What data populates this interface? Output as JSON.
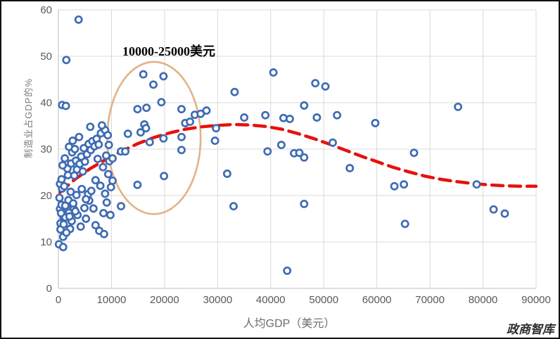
{
  "watermark": "政商智库",
  "chart_data": {
    "type": "scatter",
    "title": "",
    "xlabel": "人均GDP（美元）",
    "ylabel": "制造业占GDP的%",
    "xlim": [
      0,
      90000
    ],
    "ylim": [
      0,
      60
    ],
    "x_ticks": [
      0,
      10000,
      20000,
      30000,
      40000,
      50000,
      60000,
      70000,
      80000,
      90000
    ],
    "y_ticks": [
      0,
      10,
      20,
      30,
      40,
      50,
      60
    ],
    "grid": true,
    "legend": "none",
    "annotation": {
      "label": "10000-25000美元",
      "ellipse": {
        "cx": 18000,
        "cy": 32.4,
        "rx": 8800,
        "ry": 16.4
      }
    },
    "colors": {
      "marker_stroke": "#3f6bb4",
      "marker_fill": "#ffffff",
      "trend": "#e8100c",
      "ellipse": "#e3b286",
      "grid": "#d9d9d9",
      "axis": "#bfbfbf",
      "tick_text": "#595959"
    },
    "points": [
      [
        100,
        9.5
      ],
      [
        900,
        8.9
      ],
      [
        900,
        11.1
      ],
      [
        300,
        17.1
      ],
      [
        400,
        14.0
      ],
      [
        700,
        39.5
      ],
      [
        1400,
        39.3
      ],
      [
        1500,
        49.2
      ],
      [
        1600,
        17.2
      ],
      [
        1000,
        15.2
      ],
      [
        1300,
        15.3
      ],
      [
        500,
        16.2
      ],
      [
        2000,
        16.3
      ],
      [
        700,
        21.5
      ],
      [
        300,
        22.5
      ],
      [
        1100,
        22.0
      ],
      [
        600,
        23.5
      ],
      [
        1800,
        24.4
      ],
      [
        400,
        12.7
      ],
      [
        2200,
        12.8
      ],
      [
        2900,
        17.1
      ],
      [
        2500,
        14.5
      ],
      [
        1700,
        25.8
      ],
      [
        800,
        26.5
      ],
      [
        1200,
        28.0
      ],
      [
        2600,
        29.3
      ],
      [
        2000,
        30.5
      ],
      [
        3100,
        30.0
      ],
      [
        2400,
        26.9
      ],
      [
        3300,
        27.5
      ],
      [
        4200,
        13.3
      ],
      [
        4900,
        17.3
      ],
      [
        3600,
        15.8
      ],
      [
        7000,
        13.6
      ],
      [
        6600,
        17.2
      ],
      [
        7700,
        12.4
      ],
      [
        8600,
        11.7
      ],
      [
        5800,
        18.9
      ],
      [
        5200,
        15.0
      ],
      [
        8500,
        16.2
      ],
      [
        9800,
        15.8
      ],
      [
        9100,
        18.5
      ],
      [
        3800,
        57.9
      ],
      [
        3400,
        20.1
      ],
      [
        4400,
        21.4
      ],
      [
        5600,
        20.3
      ],
      [
        3000,
        24.3
      ],
      [
        3500,
        25.6
      ],
      [
        4000,
        26.8
      ],
      [
        4600,
        25.2
      ],
      [
        5000,
        27.3
      ],
      [
        4300,
        28.4
      ],
      [
        5400,
        28.9
      ],
      [
        4800,
        30.2
      ],
      [
        5700,
        31.1
      ],
      [
        6100,
        29.8
      ],
      [
        6400,
        31.7
      ],
      [
        6800,
        30.6
      ],
      [
        7200,
        32.2
      ],
      [
        7600,
        31.0
      ],
      [
        8000,
        33.4
      ],
      [
        8800,
        34.1
      ],
      [
        9300,
        33.0
      ],
      [
        6000,
        34.8
      ],
      [
        8200,
        35.1
      ],
      [
        9000,
        28.6
      ],
      [
        9600,
        27.4
      ],
      [
        8400,
        26.1
      ],
      [
        7400,
        27.9
      ],
      [
        9400,
        24.6
      ],
      [
        7000,
        23.3
      ],
      [
        7900,
        22.1
      ],
      [
        6200,
        21.0
      ],
      [
        5200,
        19.2
      ],
      [
        9900,
        21.8
      ],
      [
        8800,
        20.4
      ],
      [
        9500,
        30.9
      ],
      [
        2700,
        31.8
      ],
      [
        3900,
        32.6
      ],
      [
        1900,
        19.0
      ],
      [
        2300,
        20.8
      ],
      [
        2800,
        18.3
      ],
      [
        1000,
        13.8
      ],
      [
        1500,
        12.0
      ],
      [
        600,
        18.0
      ],
      [
        200,
        19.5
      ],
      [
        1300,
        17.8
      ],
      [
        3200,
        16.6
      ],
      [
        2100,
        15.5
      ],
      [
        10200,
        28.0
      ],
      [
        10200,
        23.2
      ],
      [
        11800,
        29.5
      ],
      [
        12600,
        29.5
      ],
      [
        11800,
        17.7
      ],
      [
        13100,
        33.3
      ],
      [
        15500,
        33.6
      ],
      [
        14900,
        38.6
      ],
      [
        16600,
        38.9
      ],
      [
        16000,
        46.1
      ],
      [
        19800,
        45.7
      ],
      [
        17900,
        43.9
      ],
      [
        19400,
        40.1
      ],
      [
        16200,
        35.3
      ],
      [
        16500,
        34.5
      ],
      [
        17200,
        31.5
      ],
      [
        19800,
        32.3
      ],
      [
        19900,
        24.2
      ],
      [
        14900,
        22.3
      ],
      [
        23200,
        38.6
      ],
      [
        23900,
        35.6
      ],
      [
        24800,
        35.9
      ],
      [
        23200,
        32.6
      ],
      [
        23200,
        29.8
      ],
      [
        25700,
        37.4
      ],
      [
        26800,
        37.6
      ],
      [
        27900,
        38.3
      ],
      [
        29700,
        34.5
      ],
      [
        29500,
        31.8
      ],
      [
        31800,
        24.7
      ],
      [
        33000,
        17.7
      ],
      [
        33200,
        42.3
      ],
      [
        35000,
        36.8
      ],
      [
        39000,
        37.3
      ],
      [
        39400,
        29.5
      ],
      [
        40500,
        46.5
      ],
      [
        42000,
        30.9
      ],
      [
        42400,
        36.7
      ],
      [
        43600,
        36.5
      ],
      [
        43100,
        3.8
      ],
      [
        44400,
        29.1
      ],
      [
        45400,
        29.2
      ],
      [
        46300,
        28.2
      ],
      [
        46300,
        39.4
      ],
      [
        46300,
        18.2
      ],
      [
        48400,
        44.2
      ],
      [
        48700,
        36.8
      ],
      [
        50300,
        43.5
      ],
      [
        51700,
        31.4
      ],
      [
        52500,
        37.3
      ],
      [
        54900,
        25.9
      ],
      [
        59700,
        35.6
      ],
      [
        63300,
        22.0
      ],
      [
        65100,
        22.4
      ],
      [
        65300,
        13.9
      ],
      [
        67000,
        29.2
      ],
      [
        75300,
        39.1
      ],
      [
        78800,
        22.4
      ],
      [
        82000,
        17.0
      ],
      [
        84100,
        16.1
      ]
    ],
    "trend": {
      "style": "dashed",
      "points": [
        [
          300,
          20.7
        ],
        [
          3000,
          23.4
        ],
        [
          6000,
          25.8
        ],
        [
          9000,
          27.8
        ],
        [
          12000,
          29.6
        ],
        [
          15000,
          31.2
        ],
        [
          18000,
          32.5
        ],
        [
          21000,
          33.5
        ],
        [
          24000,
          34.3
        ],
        [
          27000,
          34.8
        ],
        [
          30000,
          35.1
        ],
        [
          33000,
          35.3
        ],
        [
          36000,
          35.2
        ],
        [
          39000,
          34.9
        ],
        [
          42000,
          34.3
        ],
        [
          45000,
          33.4
        ],
        [
          48000,
          32.3
        ],
        [
          51000,
          31.1
        ],
        [
          54000,
          29.8
        ],
        [
          57000,
          28.5
        ],
        [
          60000,
          27.3
        ],
        [
          63000,
          26.1
        ],
        [
          66000,
          25.1
        ],
        [
          69000,
          24.2
        ],
        [
          72000,
          23.5
        ],
        [
          75000,
          23.0
        ],
        [
          78000,
          22.6
        ],
        [
          81000,
          22.3
        ],
        [
          84000,
          22.1
        ],
        [
          87000,
          22.0
        ],
        [
          90000,
          22.0
        ]
      ]
    }
  }
}
